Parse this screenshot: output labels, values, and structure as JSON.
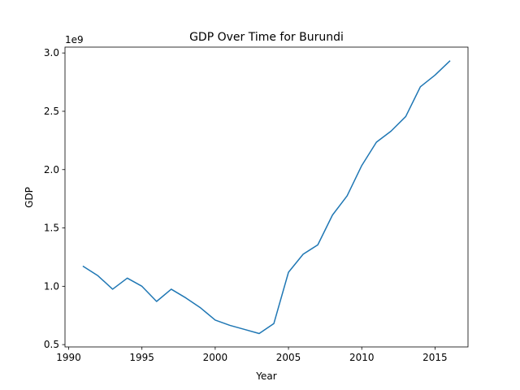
{
  "chart_data": {
    "type": "line",
    "title": "GDP Over Time for Burundi",
    "xlabel": "Year",
    "ylabel": "GDP",
    "y_offset_label": "1e9",
    "x_ticks": [
      1990,
      1995,
      2000,
      2005,
      2010,
      2015
    ],
    "x_tick_labels": [
      "1990",
      "1995",
      "2000",
      "2005",
      "2010",
      "2015"
    ],
    "y_ticks": [
      0.5,
      1.0,
      1.5,
      2.0,
      2.5,
      3.0
    ],
    "y_tick_labels": [
      "0.5",
      "1.0",
      "1.5",
      "2.0",
      "2.5",
      "3.0"
    ],
    "y_tick_scale": 1000000000,
    "xlim": [
      1989.75,
      2017.25
    ],
    "ylim": [
      480000000,
      3050000000
    ],
    "grid": false,
    "series": [
      {
        "color": "#1f77b4",
        "x": [
          1991,
          1992,
          1993,
          1994,
          1995,
          1996,
          1997,
          1998,
          1999,
          2000,
          2001,
          2002,
          2003,
          2004,
          2005,
          2006,
          2007,
          2008,
          2009,
          2010,
          2011,
          2012,
          2013,
          2014,
          2015,
          2016
        ],
        "y": [
          1170000000,
          1090000000,
          975000000,
          1070000000,
          1000000000,
          870000000,
          975000000,
          900000000,
          815000000,
          710000000,
          665000000,
          630000000,
          595000000,
          680000000,
          1120000000,
          1275000000,
          1355000000,
          1610000000,
          1775000000,
          2035000000,
          2235000000,
          2330000000,
          2455000000,
          2710000000,
          2810000000,
          2930000000
        ]
      }
    ]
  }
}
